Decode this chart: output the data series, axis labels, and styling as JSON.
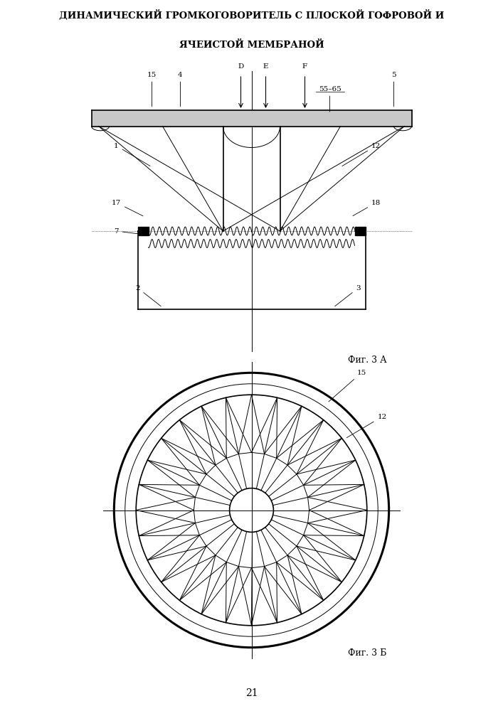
{
  "title_line1": "ДИНАМИЧЕСКИЙ ГРОМКОГОВОРИТЕЛЬ С ПЛОСКОЙ ГОФРОВОЙ И",
  "title_line2": "ЯЧЕИСТОЙ МЕМБРАНОЙ",
  "fig_label_a": "Фиг. 3 А",
  "fig_label_b": "Фиг. 3 Б",
  "page_number": "21",
  "line_color": "#000000",
  "bg_color": "#ffffff",
  "lw_thin": 0.7,
  "lw_medium": 1.2,
  "lw_thick": 2.2
}
